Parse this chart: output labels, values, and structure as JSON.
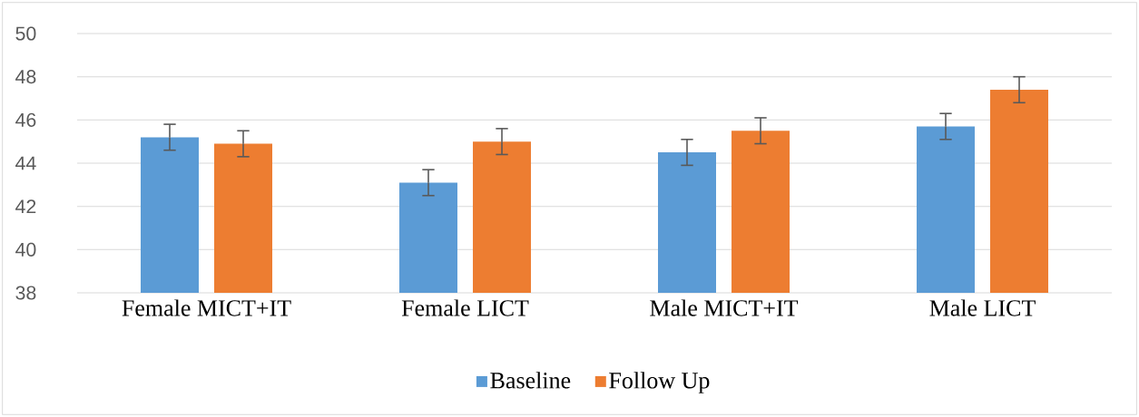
{
  "chart_data": {
    "type": "bar",
    "categories": [
      "Female MICT+IT",
      "Female LICT",
      "Male MICT+IT",
      "Male LICT"
    ],
    "series": [
      {
        "name": "Baseline",
        "color": "#5b9bd5",
        "values": [
          45.2,
          43.1,
          44.5,
          45.7
        ],
        "errors": [
          0.6,
          0.6,
          0.6,
          0.6
        ]
      },
      {
        "name": "Follow Up",
        "color": "#ed7d31",
        "values": [
          44.9,
          45.0,
          45.5,
          47.4
        ],
        "errors": [
          0.6,
          0.6,
          0.6,
          0.6
        ]
      }
    ],
    "ylim": [
      38,
      50
    ],
    "yticks": [
      38,
      40,
      42,
      44,
      46,
      48,
      50
    ],
    "grid": "y",
    "legend": "bottom"
  }
}
